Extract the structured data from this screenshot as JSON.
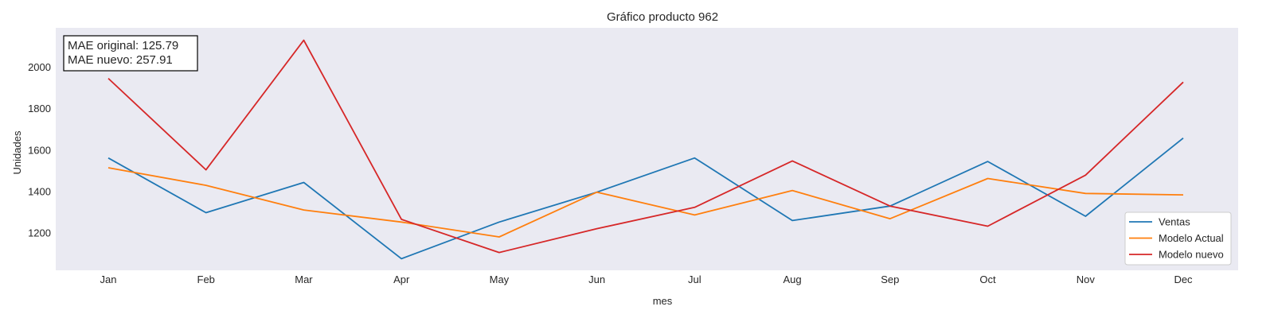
{
  "chart_data": {
    "type": "line",
    "title": "Gráfico producto 962",
    "xlabel": "mes",
    "ylabel": "Unidades",
    "categories": [
      "Jan",
      "Feb",
      "Mar",
      "Apr",
      "May",
      "Jun",
      "Jul",
      "Aug",
      "Sep",
      "Oct",
      "Nov",
      "Dec"
    ],
    "ylim": [
      1020,
      2190
    ],
    "yticks": [
      1200,
      1400,
      1600,
      1800,
      2000
    ],
    "grid": false,
    "legend_position": "bottom-right",
    "series": [
      {
        "name": "Ventas",
        "color": "#1f77b4",
        "values": [
          1562,
          1298,
          1444,
          1076,
          1253,
          1397,
          1562,
          1260,
          1330,
          1545,
          1281,
          1658
        ]
      },
      {
        "name": "Modelo Actual",
        "color": "#ff7f0e",
        "values": [
          1515,
          1430,
          1311,
          1253,
          1181,
          1397,
          1287,
          1405,
          1269,
          1463,
          1391,
          1384
        ]
      },
      {
        "name": "Modelo nuevo",
        "color": "#d62728",
        "values": [
          1946,
          1505,
          2130,
          1266,
          1106,
          1221,
          1324,
          1548,
          1330,
          1233,
          1479,
          1928
        ]
      }
    ],
    "annotation": {
      "lines": [
        "MAE original: 125.79",
        "MAE nuevo: 257.91"
      ]
    }
  },
  "colors": {
    "plot_background": "#eaeaf2",
    "annotation_border": "#000000"
  }
}
